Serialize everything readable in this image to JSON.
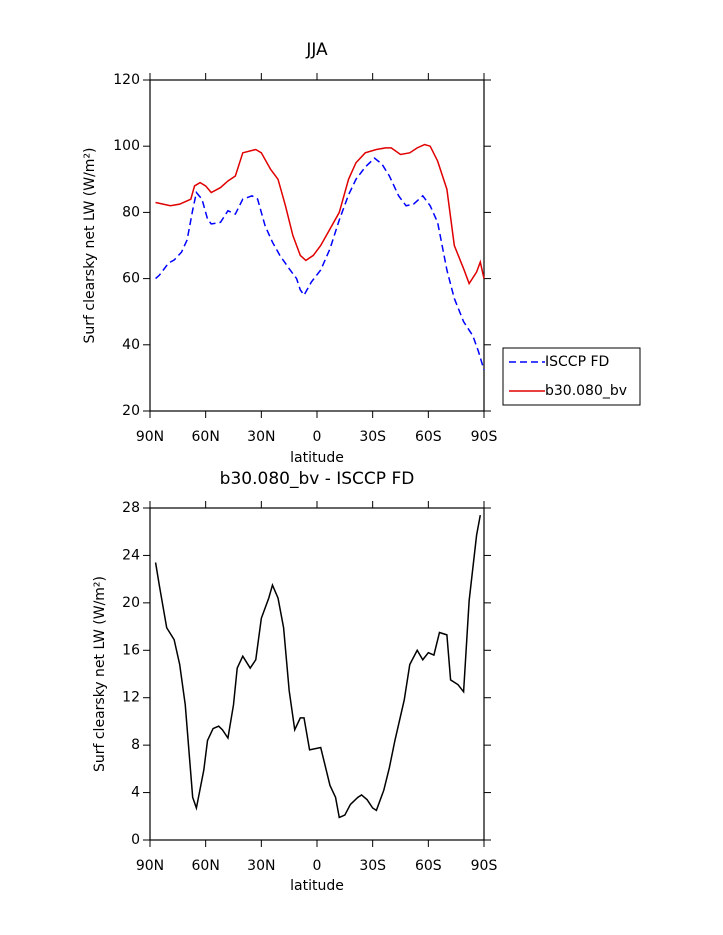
{
  "chart_data": [
    {
      "type": "line",
      "title": "JJA",
      "xlabel": "latitude",
      "ylabel": "Surf clearsky net LW (W/m²)",
      "xlim": [
        90,
        -90
      ],
      "xticks": [
        {
          "value": 90,
          "label": "90N"
        },
        {
          "value": 60,
          "label": "60N"
        },
        {
          "value": 30,
          "label": "30N"
        },
        0,
        {
          "value": -30,
          "label": "30S"
        },
        {
          "value": -60,
          "label": "60S"
        },
        {
          "value": -90,
          "label": "90S"
        }
      ],
      "ylim": [
        20,
        120
      ],
      "yticks": [
        20,
        40,
        60,
        80,
        100,
        120
      ],
      "grid": false,
      "legend": "outside-right",
      "series": [
        {
          "name": "ISCCP FD",
          "color": "#0000ff",
          "dash": true,
          "x": [
            87,
            85,
            80,
            77,
            73,
            70,
            67,
            65,
            62,
            59,
            57,
            52,
            48,
            44,
            40,
            35,
            32,
            28,
            24,
            20,
            15,
            11,
            9,
            7,
            3,
            -2,
            -7,
            -12,
            -17,
            -21,
            -26,
            -31,
            -35,
            -39,
            -44,
            -48,
            -52,
            -57,
            -61,
            -65,
            -70,
            -74,
            -79,
            -84,
            -87,
            -90
          ],
          "values": [
            60,
            61,
            64.7,
            65.6,
            68,
            71.7,
            80.7,
            86,
            84,
            78,
            76.5,
            77,
            80.5,
            79.5,
            84,
            85,
            84,
            76,
            71,
            67,
            63,
            60,
            56.6,
            55,
            59,
            62.6,
            69,
            77.7,
            85.3,
            90,
            93.7,
            96.4,
            94.6,
            91,
            85,
            82,
            82.5,
            85,
            82,
            77,
            62.6,
            54,
            47,
            42.7,
            38,
            32.4
          ]
        },
        {
          "name": "b30.080_bv",
          "color": "#e00000",
          "dash": false,
          "x": [
            87,
            79,
            74,
            68,
            66,
            63,
            60,
            57,
            52,
            48,
            44,
            40,
            33,
            30,
            25,
            21,
            17,
            13,
            9,
            6,
            2,
            -2,
            -7,
            -12,
            -17,
            -21,
            -26,
            -32,
            -37,
            -40,
            -45,
            -50,
            -54,
            -58,
            -61,
            -65,
            -70,
            -74,
            -79,
            -82,
            -86,
            -88,
            -90
          ],
          "values": [
            83,
            82,
            82.5,
            84,
            88,
            89,
            88,
            86,
            87.5,
            89.5,
            91,
            98,
            99,
            98,
            93,
            90,
            82,
            73,
            67,
            65.5,
            67,
            70,
            75,
            80,
            90,
            95,
            98,
            99,
            99.5,
            99.5,
            97.5,
            98,
            99.5,
            100.5,
            100,
            95.5,
            87,
            70,
            63,
            58.5,
            62,
            65,
            60
          ]
        }
      ]
    },
    {
      "type": "line",
      "title": "b30.080_bv - ISCCP FD",
      "xlabel": "latitude",
      "ylabel": "Surf clearsky net LW (W/m²)",
      "xlim": [
        90,
        -90
      ],
      "xticks": [
        {
          "value": 90,
          "label": "90N"
        },
        {
          "value": 60,
          "label": "60N"
        },
        {
          "value": 30,
          "label": "30N"
        },
        0,
        {
          "value": -30,
          "label": "30S"
        },
        {
          "value": -60,
          "label": "60S"
        },
        {
          "value": -90,
          "label": "90S"
        }
      ],
      "ylim": [
        0,
        28
      ],
      "yticks": [
        0,
        4,
        8,
        12,
        16,
        20,
        24,
        28
      ],
      "grid": false,
      "color": "#000000",
      "x": [
        87,
        85,
        81,
        77,
        74,
        71,
        67,
        65,
        61,
        59,
        56,
        53,
        51,
        48,
        45,
        43,
        40,
        36,
        33,
        30,
        26,
        24,
        21,
        18,
        15,
        12,
        9,
        7,
        4,
        -2,
        -7,
        -10,
        -12,
        -15,
        -18,
        -22,
        -24,
        -27,
        -30,
        -32,
        -36,
        -39,
        -42,
        -47,
        -50,
        -54,
        -57,
        -60,
        -63,
        -66,
        -70,
        -72,
        -76,
        -79,
        -82,
        -86,
        -88
      ],
      "values": [
        23.4,
        21.5,
        17.9,
        16.9,
        14.8,
        11.4,
        3.6,
        2.7,
        5.9,
        8.4,
        9.4,
        9.6,
        9.3,
        8.6,
        11.4,
        14.5,
        15.5,
        14.5,
        15.2,
        18.7,
        20.4,
        21.5,
        20.4,
        17.9,
        12.6,
        9.3,
        10.3,
        10.3,
        7.6,
        7.8,
        4.6,
        3.6,
        1.9,
        2.1,
        3,
        3.6,
        3.8,
        3.4,
        2.7,
        2.5,
        4.2,
        6.1,
        8.4,
        11.8,
        14.8,
        16,
        15.2,
        15.8,
        15.6,
        17.5,
        17.3,
        13.5,
        13.1,
        12.5,
        20.2,
        25.7,
        27.4
      ]
    }
  ]
}
